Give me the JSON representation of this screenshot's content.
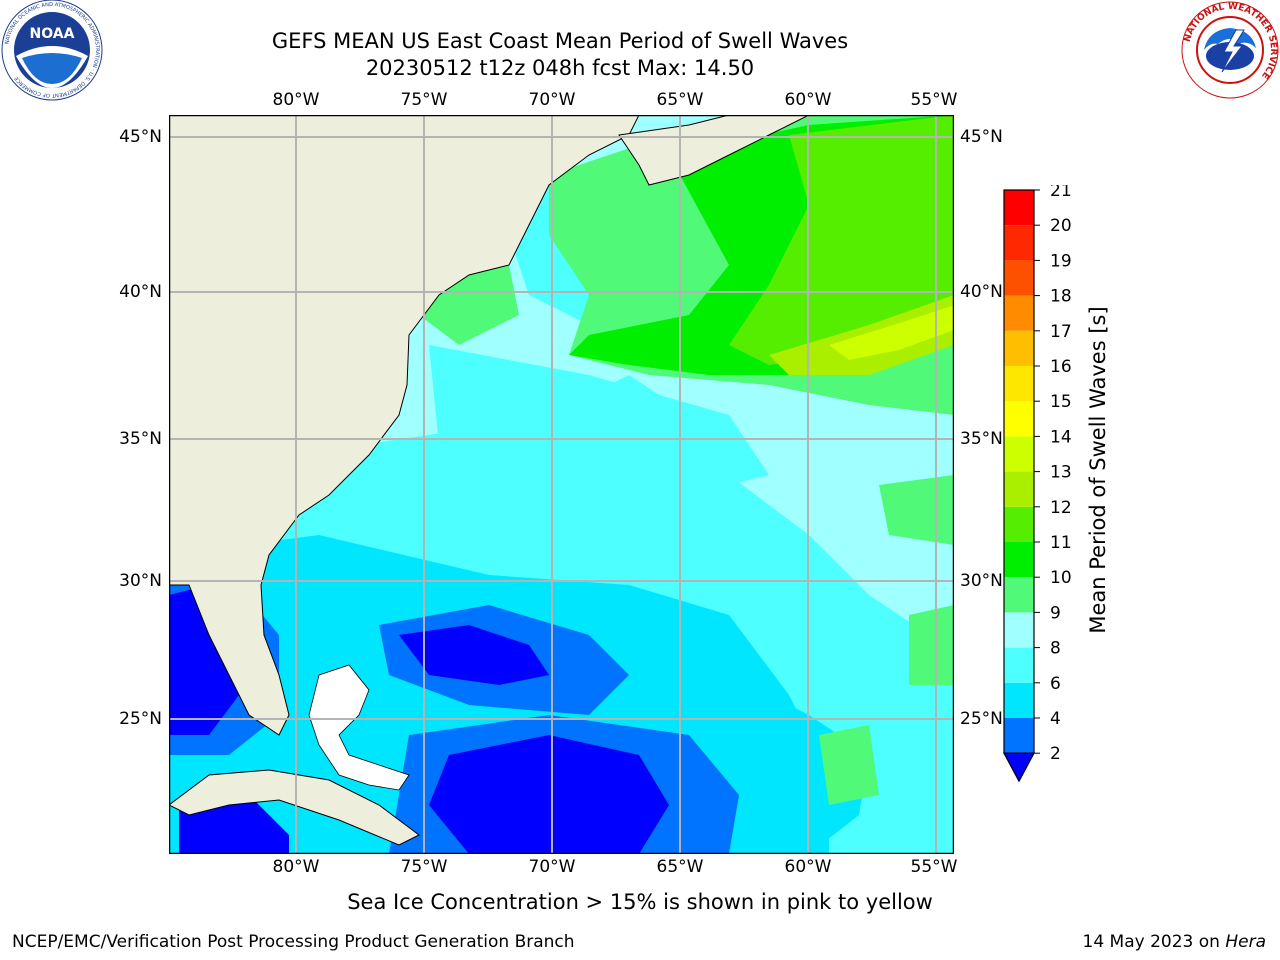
{
  "title": {
    "line1": "GEFS MEAN US East Coast Mean Period of Swell Waves",
    "line2": "20230512 t12z 048h fcst   Max: 14.50"
  },
  "map": {
    "lon_ticks": [
      "80°W",
      "75°W",
      "70°W",
      "65°W",
      "60°W",
      "55°W"
    ],
    "lat_ticks": [
      "45°N",
      "40°N",
      "35°N",
      "30°N",
      "25°N"
    ],
    "extent": {
      "lon_min": -85,
      "lon_max": -54.3,
      "lat_min": 20.2,
      "lat_max": 45.8
    },
    "land_color": "#eeeedc",
    "grid_color": "#b4b4b4"
  },
  "colorbar": {
    "label": "Mean Period of Swell Waves [s]",
    "ticks": [
      "2",
      "4",
      "6",
      "8",
      "9",
      "10",
      "11",
      "12",
      "13",
      "14",
      "15",
      "16",
      "17",
      "18",
      "19",
      "20",
      "21"
    ],
    "colors": [
      "#0000ff",
      "#0073ff",
      "#00e6ff",
      "#4dffff",
      "#a0ffff",
      "#50fa78",
      "#00ee00",
      "#55ee00",
      "#aaee00",
      "#ccff00",
      "#ffff00",
      "#ffe600",
      "#ffbe00",
      "#ff8c00",
      "#ff5000",
      "#ff2800",
      "#ff0000"
    ],
    "extend": "min"
  },
  "logos": {
    "noaa": "NOAA",
    "noaa_ring_text": "NATIONAL OCEANIC AND ATMOSPHERIC ADMINISTRATION · U.S. DEPARTMENT OF COMMERCE",
    "nws_ring_text": "NATIONAL WEATHER SERVICE"
  },
  "ice_note": "Sea Ice Concentration > 15% is shown in pink to yellow",
  "footer": {
    "left": "NCEP/EMC/Verification Post Processing Product Generation Branch",
    "date": "14 May 2023 on",
    "host": "Hera"
  }
}
